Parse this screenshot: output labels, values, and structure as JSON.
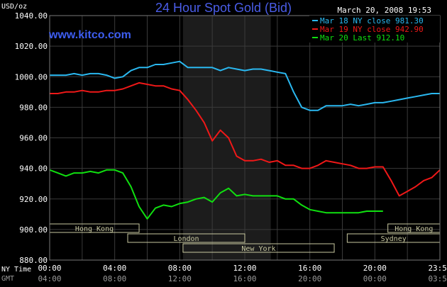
{
  "chart_data": {
    "type": "line",
    "title": "24 Hour Spot Gold (Bid)",
    "source": "www.kitco.com",
    "timestamp": "March 20, 2008 19:53",
    "y_unit": "USD/oz",
    "ylim": [
      880,
      1040
    ],
    "y_ticks": [
      "1040.00",
      "1020.00",
      "1000.00",
      "980.00",
      "960.00",
      "940.00",
      "920.00",
      "900.00",
      "880.00"
    ],
    "x_hours_range": [
      0,
      24
    ],
    "x_ticks_ny": [
      "00:00",
      "04:00",
      "08:00",
      "12:00",
      "16:00",
      "20:00",
      "23:59"
    ],
    "x_ticks_gmt": [
      "04:00",
      "08:00",
      "12:00",
      "16:00",
      "20:00",
      "00:00",
      "03:59"
    ],
    "x_tick_hours": [
      0,
      4,
      8,
      12,
      16,
      20,
      24
    ],
    "axis_label_ny": "NY Time",
    "axis_label_gmt": "GMT",
    "grid": true,
    "shaded_hours": [
      8.2,
      13.6
    ],
    "legend_position": "top-right",
    "colors": {
      "background": "#000000",
      "grid": "#3a3a3a",
      "shaded": "#1c1c1c",
      "title": "#4a5de8",
      "source": "#3d5df0",
      "text": "#ffffff",
      "session_box": "#c8c8a0"
    },
    "sessions": [
      {
        "name": "Hong Kong",
        "start": 0,
        "end": 5.5,
        "row": 0
      },
      {
        "name": "Hong Kong",
        "start": 20.8,
        "end": 24,
        "row": 0
      },
      {
        "name": "London",
        "start": 4.8,
        "end": 12.0,
        "row": 1
      },
      {
        "name": "Sydney",
        "start": 18.3,
        "end": 24,
        "row": 1
      },
      {
        "name": "New York",
        "start": 8.2,
        "end": 17.5,
        "row": 2
      }
    ],
    "series": [
      {
        "name": "Mar 18 NY close 981.30",
        "color": "#2ab8f0",
        "x": [
          0,
          0.5,
          1,
          1.5,
          2,
          2.5,
          3,
          3.5,
          4,
          4.5,
          5,
          5.5,
          6,
          6.5,
          7,
          7.5,
          8,
          8.5,
          9,
          9.5,
          10,
          10.5,
          11,
          11.5,
          12,
          12.5,
          13,
          13.5,
          14,
          14.5,
          15,
          15.5,
          16,
          16.5,
          17,
          17.5,
          18,
          18.5,
          19,
          19.5,
          20,
          20.5,
          21,
          21.5,
          22,
          22.5,
          23,
          23.5,
          24
        ],
        "y": [
          1001,
          1001,
          1001,
          1002,
          1001,
          1002,
          1002,
          1001,
          999,
          1000,
          1004,
          1006,
          1006,
          1008,
          1008,
          1009,
          1010,
          1006,
          1006,
          1006,
          1006,
          1004,
          1006,
          1005,
          1004,
          1005,
          1005,
          1004,
          1003,
          1002,
          990,
          980,
          978,
          978,
          981,
          981,
          981,
          982,
          981,
          982,
          983,
          983,
          984,
          985,
          986,
          987,
          988,
          989,
          989
        ]
      },
      {
        "name": "Mar 19 NY close 942.90",
        "color": "#f01818",
        "x": [
          0,
          0.5,
          1,
          1.5,
          2,
          2.5,
          3,
          3.5,
          4,
          4.5,
          5,
          5.5,
          6,
          6.5,
          7,
          7.5,
          8,
          8.5,
          9,
          9.5,
          10,
          10.5,
          11,
          11.5,
          12,
          12.5,
          13,
          13.5,
          14,
          14.5,
          15,
          15.5,
          16,
          16.5,
          17,
          17.5,
          18,
          18.5,
          19,
          19.5,
          20,
          20.5,
          21,
          21.5,
          22,
          22.5,
          23,
          23.5,
          24
        ],
        "y": [
          989,
          989,
          990,
          990,
          991,
          990,
          990,
          991,
          991,
          992,
          994,
          996,
          995,
          994,
          994,
          992,
          991,
          985,
          978,
          970,
          958,
          965,
          960,
          948,
          945,
          945,
          946,
          944,
          945,
          942,
          942,
          940,
          940,
          942,
          945,
          944,
          943,
          942,
          940,
          940,
          941,
          941,
          932,
          922,
          925,
          928,
          932,
          934,
          939
        ]
      },
      {
        "name": "Mar 20 Last 912.10",
        "color": "#10e010",
        "x": [
          0,
          0.5,
          1,
          1.5,
          2,
          2.5,
          3,
          3.5,
          4,
          4.5,
          5,
          5.5,
          6,
          6.5,
          7,
          7.5,
          8,
          8.5,
          9,
          9.5,
          10,
          10.5,
          11,
          11.5,
          12,
          12.5,
          13,
          13.5,
          14,
          14.5,
          15,
          15.5,
          16,
          16.5,
          17,
          17.5,
          18,
          18.5,
          19,
          19.5,
          20,
          20.5
        ],
        "y": [
          939,
          937,
          935,
          937,
          937,
          938,
          937,
          939,
          939,
          937,
          928,
          915,
          907,
          914,
          916,
          915,
          917,
          918,
          920,
          921,
          918,
          924,
          927,
          922,
          923,
          922,
          922,
          922,
          922,
          920,
          920,
          916,
          913,
          912,
          911,
          911,
          911,
          911,
          911,
          912,
          912,
          912
        ]
      }
    ]
  }
}
